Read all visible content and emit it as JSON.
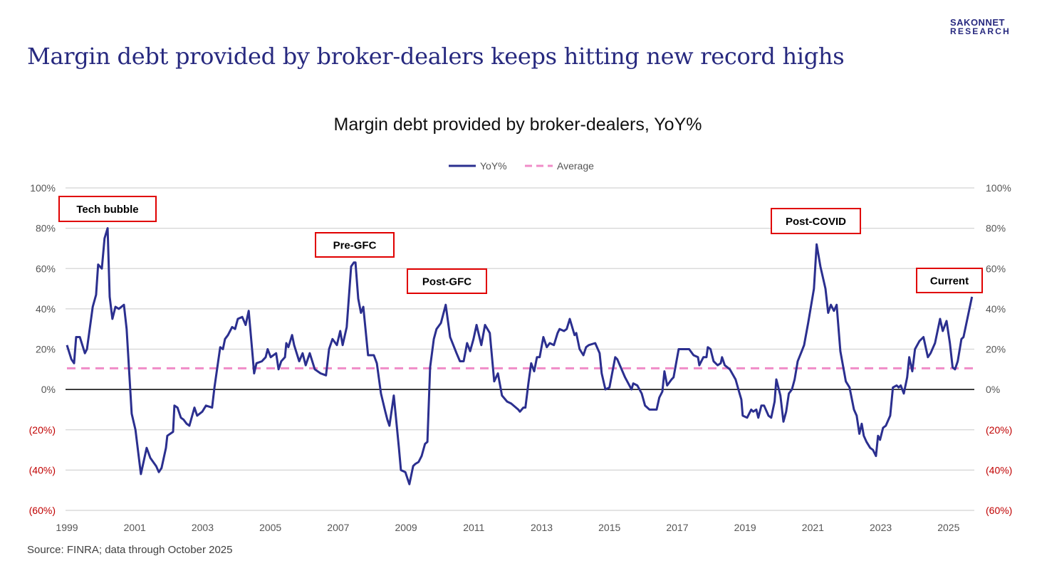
{
  "header": {
    "title": "Margin debt provided by broker-dealers keeps hitting new record highs",
    "logo_line1": "SAKONNET",
    "logo_line2": "RESEARCH"
  },
  "footer": {
    "source": "Source: FINRA; data through October 2025"
  },
  "colors": {
    "series": "#2b2f8f",
    "average": "#f08cc8",
    "negative_label": "#c00000",
    "brand": "#27297f",
    "annotation_border": "#e00000"
  },
  "chart_data": {
    "type": "line",
    "title": "Margin debt provided by broker-dealers, YoY%",
    "xlabel": "",
    "ylabel": "",
    "xlim": [
      1999,
      2025.76
    ],
    "ylim": [
      -60,
      100
    ],
    "grid": true,
    "legend_position": "top-center",
    "x_ticks": [
      1999,
      2001,
      2003,
      2005,
      2007,
      2009,
      2011,
      2013,
      2015,
      2017,
      2019,
      2021,
      2023,
      2025
    ],
    "x_tick_labels": [
      "1999",
      "2001",
      "2003",
      "2005",
      "2007",
      "2009",
      "2011",
      "2013",
      "2015",
      "2017",
      "2019",
      "2021",
      "2023",
      "2025"
    ],
    "y_ticks": [
      100,
      80,
      60,
      40,
      20,
      0,
      -20,
      -40,
      -60
    ],
    "y_tick_labels": [
      "100%",
      "80%",
      "60%",
      "40%",
      "20%",
      "0%",
      "(20%)",
      "(40%)",
      "(60%)"
    ],
    "series": [
      {
        "name": "YoY%",
        "style": "solid",
        "points": [
          [
            1999.0,
            22
          ],
          [
            1999.13,
            15
          ],
          [
            1999.21,
            13
          ],
          [
            1999.27,
            26
          ],
          [
            1999.38,
            26
          ],
          [
            1999.53,
            18
          ],
          [
            1999.59,
            20
          ],
          [
            1999.76,
            41
          ],
          [
            1999.86,
            47
          ],
          [
            1999.92,
            62
          ],
          [
            2000.03,
            60
          ],
          [
            2000.11,
            75
          ],
          [
            2000.2,
            80
          ],
          [
            2000.26,
            46
          ],
          [
            2000.34,
            35
          ],
          [
            2000.43,
            41
          ],
          [
            2000.53,
            40
          ],
          [
            2000.68,
            42
          ],
          [
            2000.76,
            30
          ],
          [
            2000.91,
            -12
          ],
          [
            2001.02,
            -20
          ],
          [
            2001.18,
            -42
          ],
          [
            2001.35,
            -29
          ],
          [
            2001.46,
            -34
          ],
          [
            2001.63,
            -38
          ],
          [
            2001.71,
            -41
          ],
          [
            2001.79,
            -39
          ],
          [
            2001.92,
            -29
          ],
          [
            2001.96,
            -23
          ],
          [
            2002.13,
            -21
          ],
          [
            2002.17,
            -8
          ],
          [
            2002.26,
            -9
          ],
          [
            2002.36,
            -14
          ],
          [
            2002.44,
            -15
          ],
          [
            2002.53,
            -17
          ],
          [
            2002.61,
            -18
          ],
          [
            2002.76,
            -9
          ],
          [
            2002.84,
            -13
          ],
          [
            2002.99,
            -11
          ],
          [
            2003.1,
            -8
          ],
          [
            2003.28,
            -9
          ],
          [
            2003.35,
            1
          ],
          [
            2003.52,
            21
          ],
          [
            2003.6,
            20
          ],
          [
            2003.66,
            25
          ],
          [
            2003.75,
            27
          ],
          [
            2003.87,
            31
          ],
          [
            2003.96,
            30
          ],
          [
            2004.04,
            35
          ],
          [
            2004.17,
            36
          ],
          [
            2004.27,
            32
          ],
          [
            2004.36,
            39
          ],
          [
            2004.48,
            16
          ],
          [
            2004.52,
            8
          ],
          [
            2004.59,
            13
          ],
          [
            2004.75,
            14
          ],
          [
            2004.86,
            16
          ],
          [
            2004.92,
            20
          ],
          [
            2005.01,
            16
          ],
          [
            2005.17,
            18
          ],
          [
            2005.24,
            10
          ],
          [
            2005.32,
            14
          ],
          [
            2005.43,
            16
          ],
          [
            2005.47,
            23
          ],
          [
            2005.53,
            21
          ],
          [
            2005.64,
            27
          ],
          [
            2005.7,
            22
          ],
          [
            2005.85,
            14
          ],
          [
            2005.95,
            18
          ],
          [
            2006.04,
            12
          ],
          [
            2006.16,
            18
          ],
          [
            2006.31,
            10
          ],
          [
            2006.48,
            8
          ],
          [
            2006.64,
            7
          ],
          [
            2006.73,
            20
          ],
          [
            2006.83,
            25
          ],
          [
            2006.96,
            22
          ],
          [
            2007.06,
            29
          ],
          [
            2007.13,
            22
          ],
          [
            2007.25,
            31
          ],
          [
            2007.38,
            61
          ],
          [
            2007.46,
            63
          ],
          [
            2007.51,
            63
          ],
          [
            2007.59,
            45
          ],
          [
            2007.67,
            38
          ],
          [
            2007.74,
            41
          ],
          [
            2007.88,
            17
          ],
          [
            2008.05,
            17
          ],
          [
            2008.14,
            13
          ],
          [
            2008.26,
            -2
          ],
          [
            2008.39,
            -11
          ],
          [
            2008.45,
            -15
          ],
          [
            2008.51,
            -18
          ],
          [
            2008.64,
            -3
          ],
          [
            2008.79,
            -29
          ],
          [
            2008.85,
            -40
          ],
          [
            2008.98,
            -41
          ],
          [
            2009.1,
            -47
          ],
          [
            2009.21,
            -38
          ],
          [
            2009.27,
            -37
          ],
          [
            2009.37,
            -36
          ],
          [
            2009.46,
            -33
          ],
          [
            2009.56,
            -27
          ],
          [
            2009.63,
            -26
          ],
          [
            2009.71,
            11
          ],
          [
            2009.82,
            25
          ],
          [
            2009.9,
            30
          ],
          [
            2010.03,
            33
          ],
          [
            2010.17,
            42
          ],
          [
            2010.3,
            26
          ],
          [
            2010.49,
            18
          ],
          [
            2010.59,
            14
          ],
          [
            2010.7,
            14
          ],
          [
            2010.8,
            23
          ],
          [
            2010.89,
            19
          ],
          [
            2010.99,
            25
          ],
          [
            2011.08,
            32
          ],
          [
            2011.22,
            22
          ],
          [
            2011.33,
            32
          ],
          [
            2011.47,
            28
          ],
          [
            2011.6,
            4
          ],
          [
            2011.71,
            8
          ],
          [
            2011.83,
            -3
          ],
          [
            2011.98,
            -6
          ],
          [
            2012.1,
            -7
          ],
          [
            2012.31,
            -10
          ],
          [
            2012.36,
            -11
          ],
          [
            2012.46,
            -9
          ],
          [
            2012.52,
            -9
          ],
          [
            2012.61,
            3
          ],
          [
            2012.69,
            13
          ],
          [
            2012.78,
            9
          ],
          [
            2012.86,
            16
          ],
          [
            2012.94,
            16
          ],
          [
            2013.05,
            26
          ],
          [
            2013.15,
            21
          ],
          [
            2013.24,
            23
          ],
          [
            2013.36,
            22
          ],
          [
            2013.47,
            28
          ],
          [
            2013.53,
            30
          ],
          [
            2013.66,
            29
          ],
          [
            2013.74,
            30
          ],
          [
            2013.83,
            35
          ],
          [
            2013.97,
            27
          ],
          [
            2014.02,
            28
          ],
          [
            2014.12,
            20
          ],
          [
            2014.23,
            17
          ],
          [
            2014.31,
            21
          ],
          [
            2014.39,
            22
          ],
          [
            2014.58,
            23
          ],
          [
            2014.71,
            18
          ],
          [
            2014.77,
            8
          ],
          [
            2014.88,
            0
          ],
          [
            2015.0,
            1
          ],
          [
            2015.17,
            16
          ],
          [
            2015.23,
            15
          ],
          [
            2015.46,
            6
          ],
          [
            2015.65,
            0
          ],
          [
            2015.7,
            3
          ],
          [
            2015.82,
            2
          ],
          [
            2015.95,
            -2
          ],
          [
            2016.05,
            -8
          ],
          [
            2016.18,
            -10
          ],
          [
            2016.39,
            -10
          ],
          [
            2016.47,
            -4
          ],
          [
            2016.56,
            -1
          ],
          [
            2016.62,
            9
          ],
          [
            2016.7,
            2
          ],
          [
            2016.83,
            5
          ],
          [
            2016.89,
            6
          ],
          [
            2017.04,
            20
          ],
          [
            2017.19,
            20
          ],
          [
            2017.35,
            20
          ],
          [
            2017.48,
            17
          ],
          [
            2017.61,
            16
          ],
          [
            2017.65,
            12
          ],
          [
            2017.77,
            16
          ],
          [
            2017.86,
            16
          ],
          [
            2017.9,
            21
          ],
          [
            2017.98,
            20
          ],
          [
            2018.07,
            14
          ],
          [
            2018.19,
            12
          ],
          [
            2018.28,
            13
          ],
          [
            2018.32,
            16
          ],
          [
            2018.4,
            12
          ],
          [
            2018.55,
            10
          ],
          [
            2018.72,
            5
          ],
          [
            2018.82,
            -1
          ],
          [
            2018.89,
            -5
          ],
          [
            2018.93,
            -13
          ],
          [
            2019.06,
            -14
          ],
          [
            2019.18,
            -10
          ],
          [
            2019.24,
            -11
          ],
          [
            2019.33,
            -10
          ],
          [
            2019.39,
            -14
          ],
          [
            2019.48,
            -8
          ],
          [
            2019.56,
            -8
          ],
          [
            2019.69,
            -13
          ],
          [
            2019.77,
            -14
          ],
          [
            2019.87,
            -6
          ],
          [
            2019.92,
            5
          ],
          [
            2020.04,
            -3
          ],
          [
            2020.13,
            -16
          ],
          [
            2020.21,
            -11
          ],
          [
            2020.29,
            -2
          ],
          [
            2020.38,
            0
          ],
          [
            2020.46,
            5
          ],
          [
            2020.55,
            14
          ],
          [
            2020.67,
            19
          ],
          [
            2020.74,
            22
          ],
          [
            2020.86,
            33
          ],
          [
            2021.03,
            50
          ],
          [
            2021.11,
            72
          ],
          [
            2021.22,
            61
          ],
          [
            2021.37,
            50
          ],
          [
            2021.45,
            38
          ],
          [
            2021.53,
            42
          ],
          [
            2021.62,
            39
          ],
          [
            2021.7,
            42
          ],
          [
            2021.81,
            19
          ],
          [
            2021.97,
            4
          ],
          [
            2022.08,
            1
          ],
          [
            2022.21,
            -10
          ],
          [
            2022.29,
            -13
          ],
          [
            2022.37,
            -22
          ],
          [
            2022.44,
            -17
          ],
          [
            2022.5,
            -23
          ],
          [
            2022.58,
            -26
          ],
          [
            2022.69,
            -29
          ],
          [
            2022.77,
            -30
          ],
          [
            2022.86,
            -33
          ],
          [
            2022.92,
            -23
          ],
          [
            2022.98,
            -25
          ],
          [
            2023.07,
            -19
          ],
          [
            2023.15,
            -18
          ],
          [
            2023.28,
            -13
          ],
          [
            2023.36,
            1
          ],
          [
            2023.47,
            2
          ],
          [
            2023.53,
            1
          ],
          [
            2023.59,
            2
          ],
          [
            2023.68,
            -2
          ],
          [
            2023.78,
            6
          ],
          [
            2023.84,
            16
          ],
          [
            2023.93,
            9
          ],
          [
            2024.01,
            20
          ],
          [
            2024.14,
            24
          ],
          [
            2024.26,
            26
          ],
          [
            2024.39,
            16
          ],
          [
            2024.47,
            18
          ],
          [
            2024.6,
            23
          ],
          [
            2024.75,
            35
          ],
          [
            2024.83,
            29
          ],
          [
            2024.94,
            34
          ],
          [
            2025.04,
            23
          ],
          [
            2025.12,
            11
          ],
          [
            2025.19,
            10
          ],
          [
            2025.27,
            14
          ],
          [
            2025.38,
            25
          ],
          [
            2025.44,
            26
          ],
          [
            2025.69,
            46
          ]
        ]
      },
      {
        "name": "Average",
        "style": "dashed",
        "value": 10.5
      }
    ],
    "annotations": [
      {
        "text": "Tech bubble",
        "x": 2000.2,
        "y": 80
      },
      {
        "text": "Pre-GFC",
        "x": 2007.5,
        "y": 63
      },
      {
        "text": "Post-GFC",
        "x": 2010.2,
        "y": 42
      },
      {
        "text": "Post-COVID",
        "x": 2021.1,
        "y": 72
      },
      {
        "text": "Current",
        "x": 2025.69,
        "y": 46
      }
    ]
  }
}
